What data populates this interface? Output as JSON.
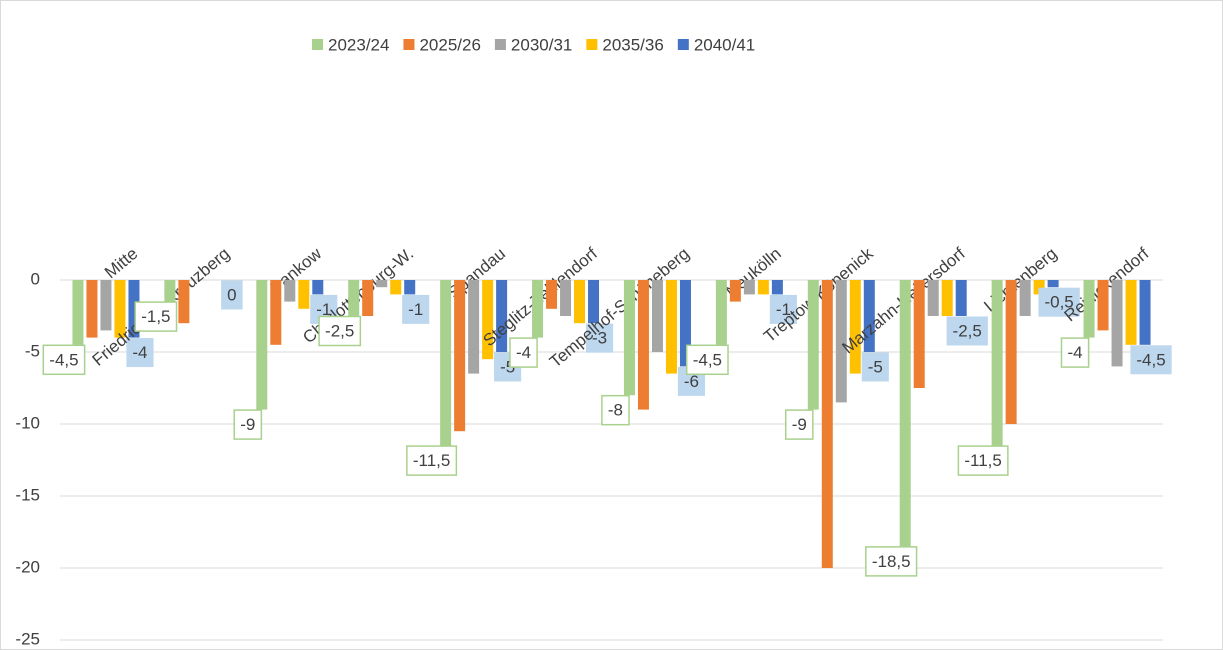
{
  "chart_data": {
    "type": "bar",
    "categories": [
      "Mitte",
      "Friedrichsh.-Kreuzberg",
      "Pankow",
      "Charlottenburg-W.",
      "Spandau",
      "Steglitz-Zehlendorf",
      "Tempelhof-Schöneberg",
      "Neukölln",
      "Treptow-Köpenick",
      "Marzahn-Hellersdorf",
      "Lichtenberg",
      "Reinickendorf"
    ],
    "series": [
      {
        "name": "2023/24",
        "color": "#a9d18e",
        "values": [
          -4.5,
          -1.5,
          -9,
          -2.5,
          -11.5,
          -4,
          -8,
          -4.5,
          -9,
          -18.5,
          -11.5,
          -4
        ],
        "value_labels": [
          "-4,5",
          "-1,5",
          "-9",
          "-2,5",
          "-11,5",
          "-4",
          "-8",
          "-4,5",
          "-9",
          "-18,5",
          "-11,5",
          "-4"
        ]
      },
      {
        "name": "2025/26",
        "color": "#ed7d31",
        "values": [
          -4,
          -3,
          -4.5,
          -2.5,
          -10.5,
          -2,
          -9,
          -1.5,
          -20,
          -7.5,
          -10,
          -3.5
        ]
      },
      {
        "name": "2030/31",
        "color": "#a5a5a5",
        "values": [
          -3.5,
          0,
          -1.5,
          -0.5,
          -6.5,
          -2.5,
          -5,
          -1,
          -8.5,
          -2.5,
          -2.5,
          -6
        ]
      },
      {
        "name": "2035/36",
        "color": "#ffc000",
        "values": [
          -4,
          0,
          -2,
          -1,
          -5.5,
          -3,
          -6.5,
          -1,
          -6.5,
          -2.5,
          -1,
          -4.5
        ]
      },
      {
        "name": "2040/41",
        "color": "#4472c4",
        "values": [
          -4,
          0,
          -1,
          -1,
          -5,
          -3,
          -6,
          -1,
          -5,
          -2.5,
          -0.5,
          -4.5
        ],
        "value_labels": [
          "-4",
          "0",
          "-1",
          "-1",
          "-5",
          "-3",
          "-6",
          "-1",
          "-5",
          "-2,5",
          "-0,5",
          "-4,5"
        ]
      }
    ],
    "ylim": [
      -25,
      0
    ],
    "yticks": [
      0,
      -5,
      -10,
      -15,
      -20,
      -25
    ],
    "grid": true,
    "legend": "top"
  }
}
